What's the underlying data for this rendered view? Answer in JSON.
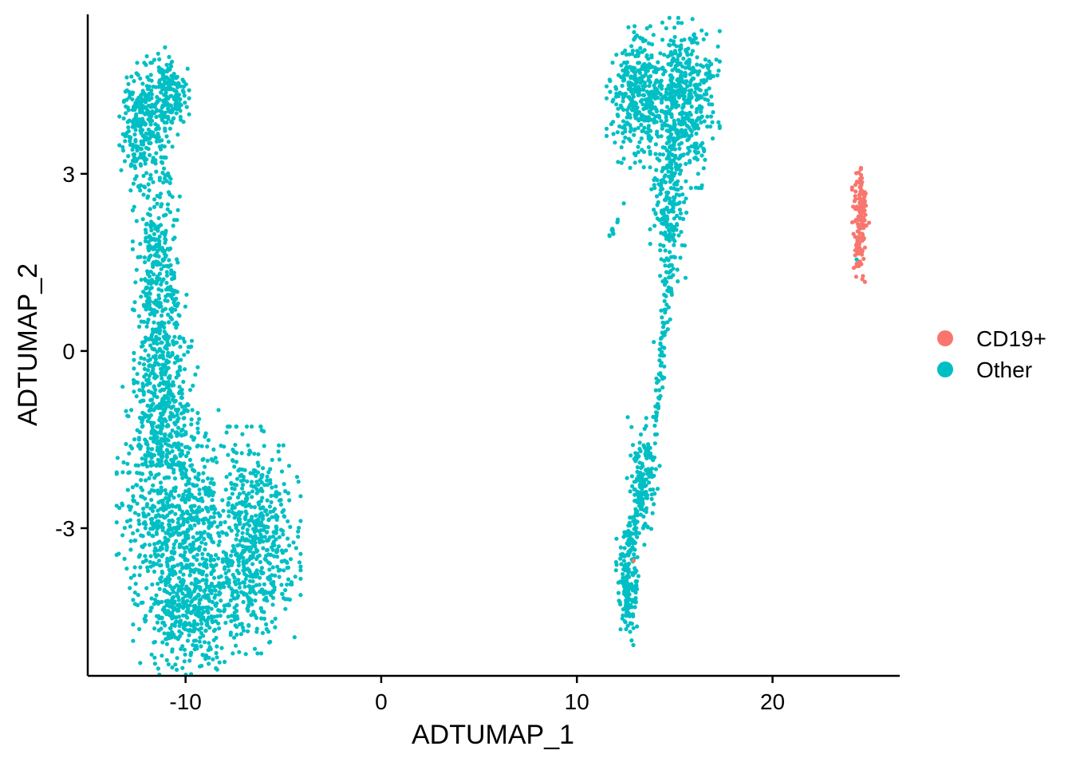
{
  "chart_data": {
    "type": "scatter",
    "xlabel": "ADTUMAP_1",
    "ylabel": "ADTUMAP_2",
    "xlim": [
      -15,
      26.5
    ],
    "ylim": [
      -5.5,
      5.7
    ],
    "x_ticks": [
      -10,
      0,
      10,
      20
    ],
    "y_ticks": [
      -3,
      0,
      3
    ],
    "x_tick_labels": [
      "-10",
      "0",
      "10",
      "20"
    ],
    "y_tick_labels": [
      "-3",
      "0",
      "3"
    ],
    "grid": false,
    "legend_position": "right",
    "series": [
      {
        "name": "CD19+",
        "color": "#F8766D",
        "clusters": [
          {
            "x": 24.5,
            "y": 2.25,
            "sx": 0.18,
            "sy": 0.45,
            "n": 140
          }
        ],
        "points": [
          [
            12.9,
            -3.55
          ]
        ]
      },
      {
        "name": "Other",
        "color": "#00BFC4",
        "clusters": [
          {
            "x": -12.3,
            "y": 3.8,
            "sx": 0.45,
            "sy": 0.45,
            "n": 260
          },
          {
            "x": -10.9,
            "y": 4.3,
            "sx": 0.45,
            "sy": 0.35,
            "n": 200
          },
          {
            "x": -11.5,
            "y": 1.6,
            "sx": 0.5,
            "sy": 0.7,
            "n": 230
          },
          {
            "x": -11.2,
            "y": 0.0,
            "sx": 0.6,
            "sy": 0.8,
            "n": 260
          },
          {
            "x": -11.3,
            "y": -1.2,
            "sx": 0.8,
            "sy": 0.6,
            "n": 280
          },
          {
            "x": -10.4,
            "y": -2.8,
            "sx": 1.3,
            "sy": 0.75,
            "n": 650
          },
          {
            "x": -9.8,
            "y": -4.4,
            "sx": 1.2,
            "sy": 0.45,
            "n": 420
          },
          {
            "x": -6.4,
            "y": -3.2,
            "sx": 0.95,
            "sy": 0.8,
            "n": 600
          },
          {
            "x": 13.2,
            "y": 4.3,
            "sx": 0.7,
            "sy": 0.5,
            "n": 380
          },
          {
            "x": 15.5,
            "y": 4.2,
            "sx": 0.75,
            "sy": 0.6,
            "n": 480
          },
          {
            "x": 14.7,
            "y": 2.5,
            "sx": 0.4,
            "sy": 0.55,
            "n": 200
          },
          {
            "x": 12.6,
            "y": -3.9,
            "sx": 0.25,
            "sy": 0.45,
            "n": 180
          },
          {
            "x": 13.4,
            "y": -2.2,
            "sx": 0.35,
            "sy": 0.45,
            "n": 140
          }
        ],
        "paths": [
          {
            "from": [
              -11.0,
              3.1
            ],
            "to": [
              -11.2,
              2.5
            ],
            "n": 15,
            "spread": 0.2
          },
          {
            "from": [
              14.8,
              1.5
            ],
            "to": [
              14.0,
              -1.2
            ],
            "n": 90,
            "spread": 0.12
          },
          {
            "from": [
              13.6,
              -1.6
            ],
            "to": [
              12.8,
              -3.2
            ],
            "n": 50,
            "spread": 0.15
          },
          {
            "from": [
              11.7,
              1.95
            ],
            "to": [
              12.1,
              2.25
            ],
            "n": 10,
            "spread": 0.05
          }
        ],
        "points": [
          [
            12.4,
            2.5
          ],
          [
            12.8,
            -4.9
          ],
          [
            24.3,
            1.55
          ],
          [
            12.1,
            3.2
          ],
          [
            16.2,
            3.0
          ]
        ]
      }
    ]
  }
}
